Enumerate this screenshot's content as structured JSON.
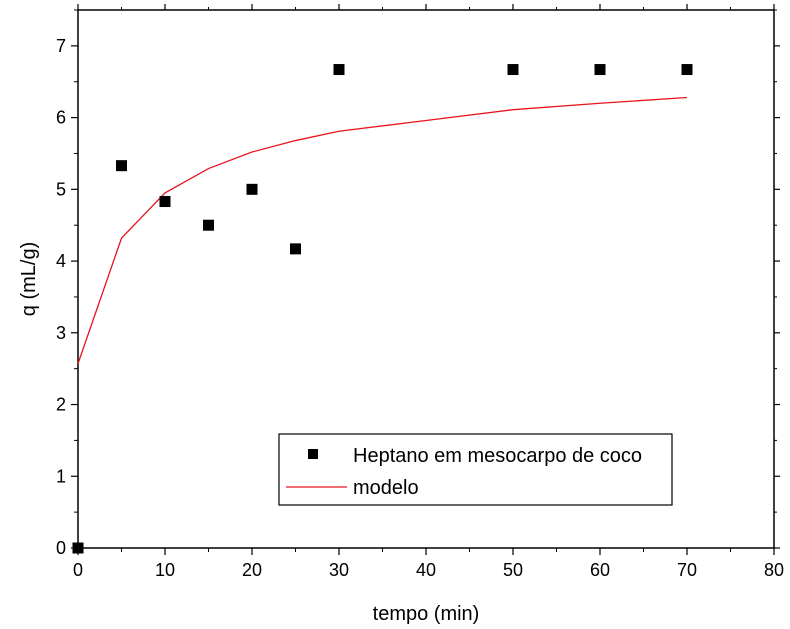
{
  "chart_data": {
    "type": "scatter",
    "title": "",
    "xlabel": "tempo (min)",
    "ylabel": "q (mL/g)",
    "xlim": [
      0,
      80
    ],
    "ylim": [
      0,
      7.5
    ],
    "x_ticks": [
      0,
      10,
      20,
      30,
      40,
      50,
      60,
      70,
      80
    ],
    "y_ticks": [
      0,
      1,
      2,
      3,
      4,
      5,
      6,
      7
    ],
    "grid": false,
    "legend_position": "bottom-right",
    "series": [
      {
        "name": "Heptano em mesocarpo de coco",
        "type": "scatter",
        "marker": "square",
        "color": "#000000",
        "x": [
          0,
          5,
          10,
          15,
          20,
          25,
          30,
          50,
          60,
          70
        ],
        "y": [
          0,
          5.33,
          4.83,
          4.5,
          5.0,
          4.17,
          6.67,
          6.67,
          6.67,
          6.67
        ]
      },
      {
        "name": "modelo",
        "type": "line",
        "color": "#e8141c",
        "x": [
          0,
          5,
          10,
          15,
          20,
          25,
          30,
          40,
          50,
          60,
          70
        ],
        "y": [
          2.57,
          4.32,
          4.95,
          5.29,
          5.52,
          5.68,
          5.81,
          5.96,
          6.11,
          6.2,
          6.28
        ]
      }
    ]
  }
}
